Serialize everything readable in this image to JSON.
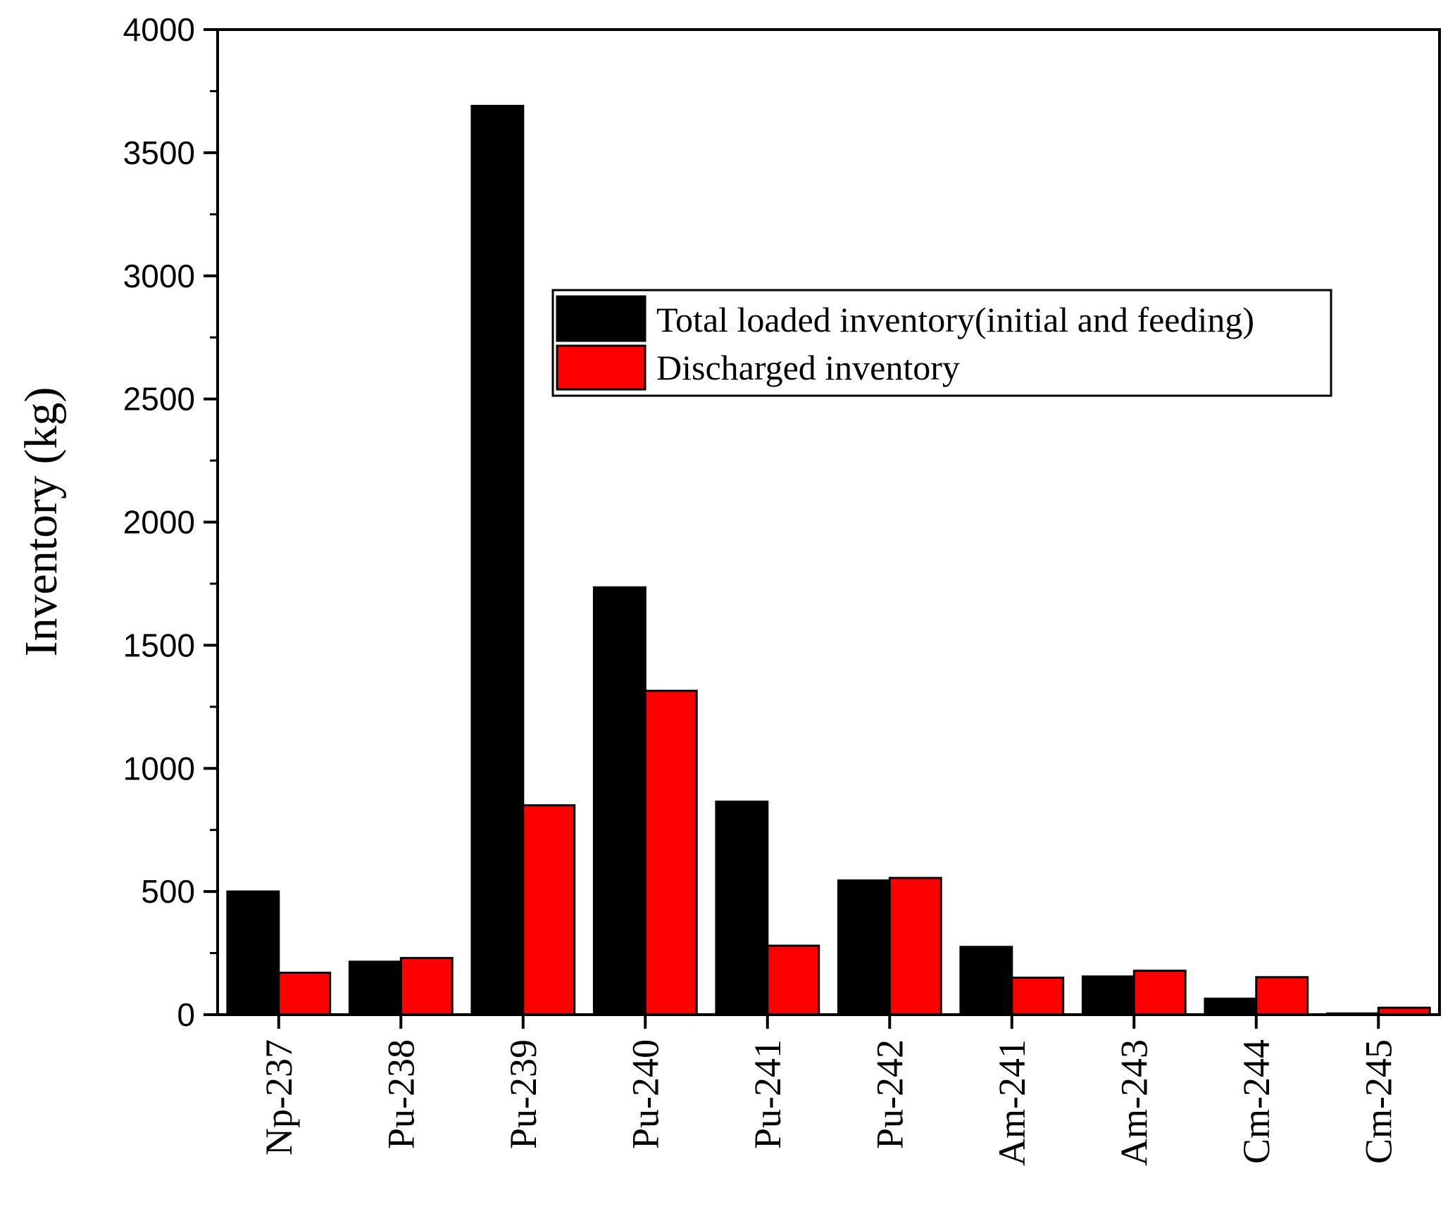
{
  "chart_data": {
    "type": "bar",
    "title": "",
    "xlabel": "",
    "ylabel": "Inventory (kg)",
    "ylim": [
      0,
      4000
    ],
    "yticks": [
      0,
      500,
      1000,
      1500,
      2000,
      2500,
      3000,
      3500,
      4000
    ],
    "categories": [
      "Np-237",
      "Pu-238",
      "Pu-239",
      "Pu-240",
      "Pu-241",
      "Pu-242",
      "Am-241",
      "Am-243",
      "Cm-244",
      "Cm-245"
    ],
    "series": [
      {
        "name": "Total loaded inventory(initial and feeding)",
        "color": "#000000",
        "values": [
          500,
          215,
          3690,
          1735,
          865,
          545,
          275,
          155,
          65,
          5
        ]
      },
      {
        "name": "Discharged inventory",
        "color": "#ff0000",
        "values": [
          170,
          230,
          850,
          1315,
          280,
          555,
          150,
          178,
          152,
          28
        ]
      }
    ],
    "legend_position": "upper-middle-right",
    "grid": false
  }
}
